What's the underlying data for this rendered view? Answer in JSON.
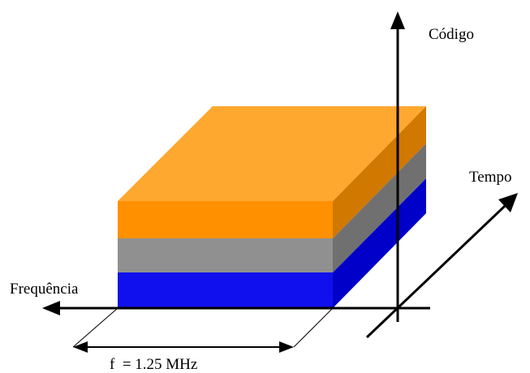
{
  "labels": {
    "code_axis": "Código",
    "time_axis": "Tempo",
    "frequency_axis": "Frequência",
    "bandwidth": "f  = 1.25 MHz"
  },
  "layers": [
    {
      "name": "orange",
      "front": "#FF9000",
      "top": "#FFA830",
      "side": "#D07800"
    },
    {
      "name": "gray",
      "front": "#909090",
      "side": "#707070"
    },
    {
      "name": "blue",
      "front": "#1010EE",
      "side": "#0000C8"
    }
  ],
  "colors": {
    "lines": "#000000",
    "background": "#ffffff"
  }
}
